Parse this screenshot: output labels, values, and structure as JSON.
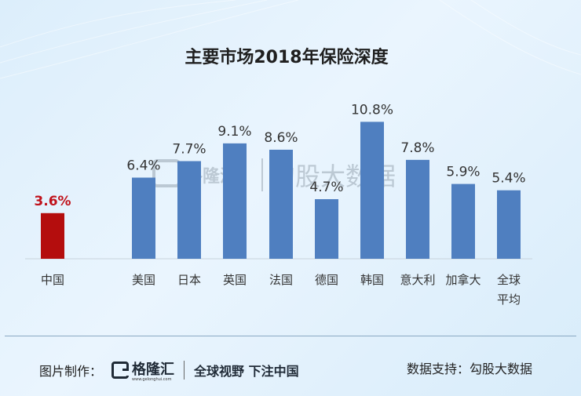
{
  "chart_data": {
    "type": "bar",
    "title": "主要市场2018年保险深度",
    "categories": [
      "中国",
      "美国",
      "日本",
      "英国",
      "法国",
      "德国",
      "韩国",
      "意大利",
      "加拿大",
      "全球平均"
    ],
    "category_lines": [
      [
        "中国"
      ],
      [
        "美国"
      ],
      [
        "日本"
      ],
      [
        "英国"
      ],
      [
        "法国"
      ],
      [
        "德国"
      ],
      [
        "韩国"
      ],
      [
        "意大利"
      ],
      [
        "加拿大"
      ],
      [
        "全球",
        "平均"
      ]
    ],
    "values": [
      3.6,
      6.4,
      7.7,
      9.1,
      8.6,
      4.7,
      10.8,
      7.8,
      5.9,
      5.4
    ],
    "data_labels": [
      "3.6%",
      "6.4%",
      "7.7%",
      "9.1%",
      "8.6%",
      "4.7%",
      "10.8%",
      "7.8%",
      "5.9%",
      "5.4%"
    ],
    "highlight_index": 0,
    "colors": {
      "bar": "#4f7fc0",
      "highlight": "#b40d0d",
      "highlight_label": "#c0121b",
      "label": "#333333"
    },
    "xlabel": "",
    "ylabel": "",
    "ylim": [
      0,
      12
    ],
    "grid": false,
    "legend": "none"
  },
  "watermark": {
    "brand": "格隆汇",
    "source": "勾股大数据"
  },
  "footer": {
    "credit_label": "图片制作：",
    "logo_text": "格隆汇",
    "logo_sub": "www.gelonghui.com",
    "slogan": "全球视野 下注中国",
    "data_source": "数据支持：勾股大数据"
  }
}
